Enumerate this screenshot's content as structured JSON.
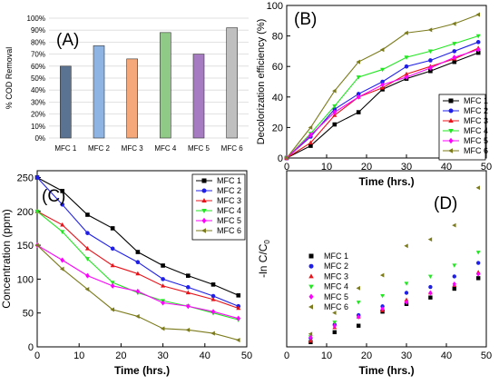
{
  "chart_data": [
    {
      "panel": "(A)",
      "type": "bar",
      "ylabel": "% COD Removal",
      "ylim": [
        0,
        100
      ],
      "yticks": [
        "0%",
        "10%",
        "20%",
        "30%",
        "40%",
        "50%",
        "60%",
        "70%",
        "80%",
        "90%",
        "100%"
      ],
      "grid": true,
      "categories": [
        "MFC 1",
        "MFC 2",
        "MFC 3",
        "MFC 4",
        "MFC 5",
        "MFC 6"
      ],
      "values": [
        60,
        77,
        66,
        88,
        70,
        92
      ],
      "colors": [
        "#5b7393",
        "#8eb4e3",
        "#f5a97b",
        "#8fcb86",
        "#a77bc2",
        "#bfbfbf"
      ],
      "bar_edge": "#333333"
    },
    {
      "panel": "(B)",
      "type": "line",
      "xlabel": "Time (hrs.)",
      "ylabel": "Decolorization efficiency (%)",
      "xlim": [
        0,
        50
      ],
      "ylim": [
        0,
        100
      ],
      "xticks": [
        0,
        10,
        20,
        30,
        40,
        50
      ],
      "yticks": [
        0,
        20,
        40,
        60,
        80,
        100
      ],
      "legend": "bottom-right",
      "x": [
        0,
        6,
        12,
        18,
        24,
        30,
        36,
        42,
        48
      ],
      "series": [
        {
          "name": "MFC 1",
          "color": "#000000",
          "marker": "square",
          "values": [
            0,
            8,
            22,
            30,
            45,
            52,
            57,
            63,
            69
          ]
        },
        {
          "name": "MFC 2",
          "color": "#1f1fe8",
          "marker": "circle",
          "values": [
            0,
            14,
            32,
            42,
            50,
            60,
            64,
            70,
            76
          ]
        },
        {
          "name": "MFC 3",
          "color": "#e8141b",
          "marker": "triangle-up",
          "values": [
            0,
            10,
            28,
            40,
            46,
            55,
            60,
            65,
            72
          ]
        },
        {
          "name": "MFC 4",
          "color": "#22e622",
          "marker": "triangle-down",
          "values": [
            0,
            16,
            34,
            53,
            58,
            66,
            70,
            75,
            80
          ]
        },
        {
          "name": "MFC 5",
          "color": "#ff00ff",
          "marker": "diamond",
          "values": [
            0,
            15,
            30,
            40,
            48,
            53,
            59,
            66,
            71
          ]
        },
        {
          "name": "MFC 6",
          "color": "#7b7b1c",
          "marker": "triangle-left",
          "values": [
            0,
            20,
            44,
            63,
            71,
            82,
            84,
            88,
            94
          ]
        }
      ]
    },
    {
      "panel": "(C)",
      "type": "line",
      "xlabel": "Time (hrs.)",
      "ylabel": "Concentration (ppm)",
      "xlim": [
        0,
        50
      ],
      "ylim": [
        0,
        260
      ],
      "xticks": [
        0,
        10,
        20,
        30,
        40,
        50
      ],
      "yticks": [
        0,
        50,
        100,
        150,
        200,
        250
      ],
      "legend": "top-right",
      "x": [
        0,
        6,
        12,
        18,
        24,
        30,
        36,
        42,
        48
      ],
      "series": [
        {
          "name": "MFC 1",
          "color": "#000000",
          "marker": "square",
          "values": [
            250,
            230,
            195,
            175,
            140,
            120,
            105,
            92,
            76
          ]
        },
        {
          "name": "MFC 2",
          "color": "#1f1fe8",
          "marker": "circle",
          "values": [
            250,
            210,
            168,
            145,
            125,
            100,
            88,
            75,
            60
          ]
        },
        {
          "name": "MFC 3",
          "color": "#e8141b",
          "marker": "triangle-up",
          "values": [
            200,
            180,
            145,
            120,
            108,
            90,
            80,
            70,
            57
          ]
        },
        {
          "name": "MFC 4",
          "color": "#22e622",
          "marker": "triangle-down",
          "values": [
            200,
            170,
            130,
            95,
            80,
            68,
            60,
            50,
            40
          ]
        },
        {
          "name": "MFC 5",
          "color": "#ff00ff",
          "marker": "diamond",
          "values": [
            150,
            128,
            105,
            90,
            82,
            65,
            60,
            52,
            42
          ]
        },
        {
          "name": "MFC 6",
          "color": "#7b7b1c",
          "marker": "triangle-left",
          "values": [
            150,
            115,
            85,
            55,
            45,
            27,
            25,
            20,
            10
          ]
        }
      ]
    },
    {
      "panel": "(D)",
      "type": "scatter",
      "xlabel": "Time (hrs.)",
      "ylabel_main": "-ln C/C",
      "ylabel_sub": "0",
      "xlim": [
        0,
        50
      ],
      "ylim": [
        0,
        3.0
      ],
      "xticks": [
        0,
        10,
        20,
        30,
        40,
        50
      ],
      "legend": "top-left",
      "x": [
        6,
        12,
        18,
        24,
        30,
        36,
        42,
        48
      ],
      "series": [
        {
          "name": "MFC 1",
          "color": "#000000",
          "marker": "square",
          "values": [
            0.08,
            0.25,
            0.36,
            0.6,
            0.73,
            0.84,
            0.99,
            1.17
          ]
        },
        {
          "name": "MFC 2",
          "color": "#1f1fe8",
          "marker": "circle",
          "values": [
            0.15,
            0.38,
            0.54,
            0.69,
            0.92,
            1.02,
            1.2,
            1.43
          ]
        },
        {
          "name": "MFC 3",
          "color": "#e8141b",
          "marker": "triangle-up",
          "values": [
            0.1,
            0.33,
            0.51,
            0.62,
            0.8,
            0.92,
            1.05,
            1.27
          ]
        },
        {
          "name": "MFC 4",
          "color": "#22e622",
          "marker": "triangle-down",
          "values": [
            0.17,
            0.42,
            0.76,
            0.87,
            1.08,
            1.2,
            1.39,
            1.61
          ]
        },
        {
          "name": "MFC 5",
          "color": "#ff00ff",
          "marker": "diamond",
          "values": [
            0.16,
            0.36,
            0.51,
            0.65,
            0.76,
            0.92,
            1.07,
            1.24
          ]
        },
        {
          "name": "MFC 6",
          "color": "#7b7b1c",
          "marker": "triangle-left",
          "values": [
            0.22,
            0.58,
            1.0,
            1.22,
            1.72,
            1.83,
            2.07,
            2.71
          ]
        }
      ]
    }
  ]
}
